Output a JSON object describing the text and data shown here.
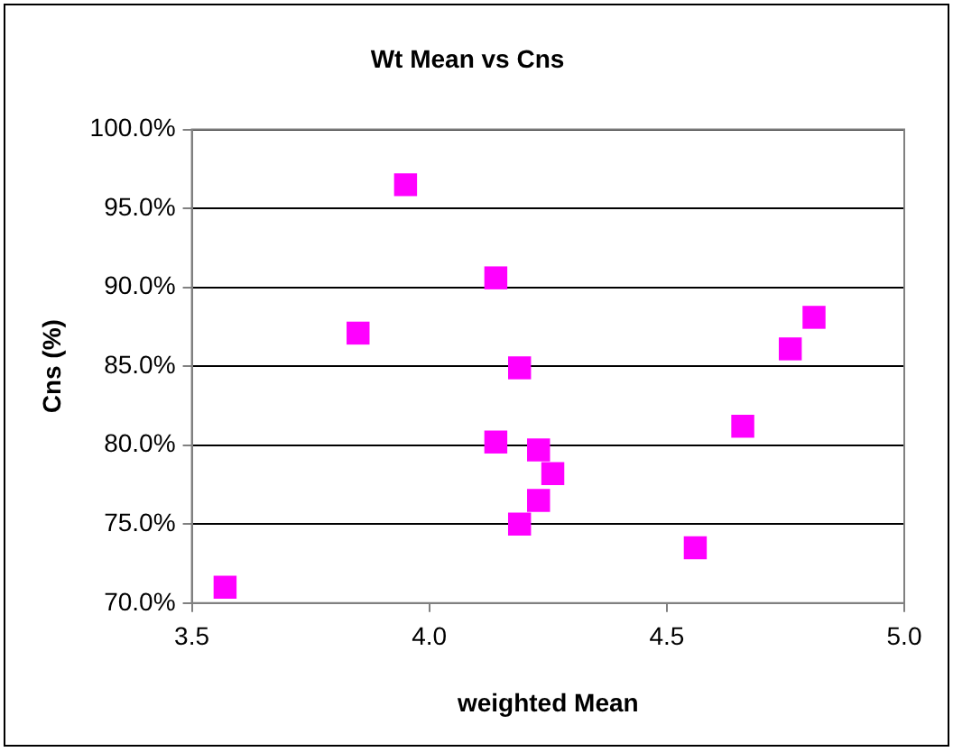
{
  "chart_data": {
    "type": "scatter",
    "title": "Wt Mean vs Cns",
    "xlabel": "weighted Mean",
    "ylabel": "Cns (%)",
    "x": [
      3.57,
      3.85,
      3.95,
      4.14,
      4.19,
      4.14,
      4.23,
      4.26,
      4.23,
      4.19,
      4.56,
      4.66,
      4.76,
      4.81
    ],
    "series": [
      {
        "color": "#ff00ff",
        "values": [
          71.0,
          87.1,
          96.5,
          90.6,
          84.9,
          80.2,
          79.7,
          78.2,
          76.5,
          75.0,
          73.5,
          81.2,
          86.1,
          88.1
        ]
      }
    ],
    "xlim": [
      3.5,
      5.0
    ],
    "xticks": [
      {
        "value": 3.5,
        "label": "3.5"
      },
      {
        "value": 4,
        "label": "4.0"
      },
      {
        "value": 4.5,
        "label": "4.5"
      },
      {
        "value": 5,
        "label": "5.0"
      }
    ],
    "ylim": [
      70,
      100
    ],
    "yticks": [
      {
        "value": 70,
        "label": "70.0%"
      },
      {
        "value": 75,
        "label": "75.0%"
      },
      {
        "value": 80,
        "label": "80.0%"
      },
      {
        "value": 85,
        "label": "85.0%"
      },
      {
        "value": 90,
        "label": "90.0%"
      },
      {
        "value": 95,
        "label": "95.0%"
      },
      {
        "value": 100,
        "label": "100.0%"
      }
    ],
    "grid": "y",
    "legend": false,
    "marker": "square"
  }
}
